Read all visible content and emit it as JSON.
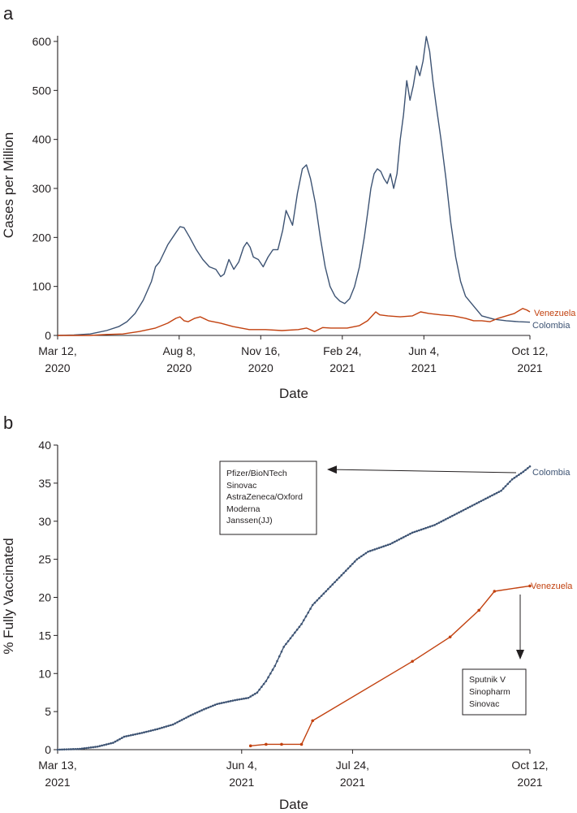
{
  "colors": {
    "colombia": "#3d5373",
    "venezuela": "#c2410f",
    "axis": "#231f20"
  },
  "chart_data": [
    {
      "panel": "a",
      "type": "line",
      "xlabel": "Date",
      "ylabel": "Cases per Million",
      "ylim": [
        0,
        600
      ],
      "yticks": [
        "0",
        "100",
        "200",
        "300",
        "400",
        "500",
        "600"
      ],
      "xrange_days": [
        0,
        579
      ],
      "xticks": [
        {
          "day": 0,
          "l1": "Mar 12,",
          "l2": "2020"
        },
        {
          "day": 149,
          "l1": "Aug 8,",
          "l2": "2020"
        },
        {
          "day": 249,
          "l1": "Nov 16,",
          "l2": "2020"
        },
        {
          "day": 349,
          "l1": "Feb 24,",
          "l2": "2021"
        },
        {
          "day": 449,
          "l1": "Jun 4,",
          "l2": "2021"
        },
        {
          "day": 579,
          "l1": "Oct 12,",
          "l2": "2021"
        }
      ],
      "series": [
        {
          "name": "Colombia",
          "color_key": "colombia",
          "points": [
            [
              0,
              0
            ],
            [
              20,
              1
            ],
            [
              40,
              3
            ],
            [
              60,
              10
            ],
            [
              75,
              18
            ],
            [
              85,
              28
            ],
            [
              95,
              45
            ],
            [
              105,
              72
            ],
            [
              115,
              110
            ],
            [
              120,
              140
            ],
            [
              125,
              150
            ],
            [
              135,
              185
            ],
            [
              145,
              210
            ],
            [
              150,
              222
            ],
            [
              155,
              220
            ],
            [
              162,
              200
            ],
            [
              170,
              175
            ],
            [
              178,
              155
            ],
            [
              186,
              140
            ],
            [
              194,
              135
            ],
            [
              200,
              120
            ],
            [
              204,
              125
            ],
            [
              210,
              155
            ],
            [
              216,
              135
            ],
            [
              222,
              150
            ],
            [
              228,
              180
            ],
            [
              232,
              190
            ],
            [
              236,
              180
            ],
            [
              240,
              160
            ],
            [
              246,
              155
            ],
            [
              252,
              140
            ],
            [
              258,
              160
            ],
            [
              264,
              175
            ],
            [
              270,
              175
            ],
            [
              276,
              215
            ],
            [
              280,
              255
            ],
            [
              284,
              240
            ],
            [
              288,
              225
            ],
            [
              294,
              290
            ],
            [
              300,
              340
            ],
            [
              305,
              348
            ],
            [
              310,
              320
            ],
            [
              316,
              270
            ],
            [
              322,
              200
            ],
            [
              328,
              140
            ],
            [
              334,
              100
            ],
            [
              340,
              80
            ],
            [
              346,
              70
            ],
            [
              352,
              65
            ],
            [
              358,
              75
            ],
            [
              364,
              100
            ],
            [
              370,
              140
            ],
            [
              376,
              200
            ],
            [
              380,
              250
            ],
            [
              384,
              300
            ],
            [
              388,
              330
            ],
            [
              392,
              340
            ],
            [
              396,
              335
            ],
            [
              400,
              320
            ],
            [
              404,
              310
            ],
            [
              408,
              330
            ],
            [
              412,
              300
            ],
            [
              416,
              330
            ],
            [
              420,
              400
            ],
            [
              424,
              450
            ],
            [
              428,
              520
            ],
            [
              432,
              480
            ],
            [
              436,
              510
            ],
            [
              440,
              550
            ],
            [
              444,
              530
            ],
            [
              448,
              560
            ],
            [
              452,
              610
            ],
            [
              456,
              580
            ],
            [
              460,
              520
            ],
            [
              464,
              470
            ],
            [
              470,
              400
            ],
            [
              476,
              320
            ],
            [
              482,
              230
            ],
            [
              488,
              160
            ],
            [
              494,
              110
            ],
            [
              500,
              80
            ],
            [
              510,
              60
            ],
            [
              520,
              40
            ],
            [
              535,
              33
            ],
            [
              550,
              30
            ],
            [
              565,
              28
            ],
            [
              579,
              27
            ]
          ]
        },
        {
          "name": "Venezuela",
          "color_key": "venezuela",
          "points": [
            [
              0,
              0
            ],
            [
              40,
              0
            ],
            [
              60,
              2
            ],
            [
              80,
              3
            ],
            [
              100,
              8
            ],
            [
              120,
              15
            ],
            [
              135,
              25
            ],
            [
              145,
              35
            ],
            [
              150,
              38
            ],
            [
              155,
              30
            ],
            [
              160,
              28
            ],
            [
              168,
              35
            ],
            [
              175,
              38
            ],
            [
              185,
              30
            ],
            [
              200,
              25
            ],
            [
              215,
              18
            ],
            [
              235,
              12
            ],
            [
              255,
              12
            ],
            [
              275,
              10
            ],
            [
              295,
              12
            ],
            [
              305,
              15
            ],
            [
              315,
              8
            ],
            [
              325,
              16
            ],
            [
              335,
              15
            ],
            [
              355,
              15
            ],
            [
              370,
              20
            ],
            [
              380,
              30
            ],
            [
              390,
              48
            ],
            [
              395,
              42
            ],
            [
              405,
              40
            ],
            [
              420,
              38
            ],
            [
              435,
              40
            ],
            [
              445,
              48
            ],
            [
              455,
              45
            ],
            [
              470,
              42
            ],
            [
              485,
              40
            ],
            [
              500,
              35
            ],
            [
              510,
              30
            ],
            [
              520,
              30
            ],
            [
              530,
              28
            ],
            [
              540,
              35
            ],
            [
              550,
              40
            ],
            [
              560,
              45
            ],
            [
              570,
              55
            ],
            [
              575,
              52
            ],
            [
              579,
              48
            ]
          ]
        }
      ],
      "series_labels": {
        "colombia": "Colombia",
        "venezuela": "Venezuela"
      }
    },
    {
      "panel": "b",
      "type": "line",
      "xlabel": "Date",
      "ylabel": "% Fully Vaccinated",
      "ylim": [
        0,
        40
      ],
      "yticks": [
        "0",
        "5",
        "10",
        "15",
        "20",
        "25",
        "30",
        "35",
        "40"
      ],
      "xrange_days": [
        0,
        213
      ],
      "xticks": [
        {
          "day": 0,
          "l1": "Mar 13,",
          "l2": "2021"
        },
        {
          "day": 83,
          "l1": "Jun 4,",
          "l2": "2021"
        },
        {
          "day": 133,
          "l1": "Jul 24,",
          "l2": "2021"
        },
        {
          "day": 213,
          "l1": "Oct 12,",
          "l2": "2021"
        }
      ],
      "series": [
        {
          "name": "Colombia",
          "color_key": "colombia",
          "dense_markers": true,
          "points": [
            [
              0,
              0
            ],
            [
              10,
              0.1
            ],
            [
              18,
              0.4
            ],
            [
              25,
              0.9
            ],
            [
              30,
              1.7
            ],
            [
              38,
              2.2
            ],
            [
              45,
              2.7
            ],
            [
              52,
              3.3
            ],
            [
              60,
              4.5
            ],
            [
              66,
              5.3
            ],
            [
              72,
              6.0
            ],
            [
              80,
              6.5
            ],
            [
              86,
              6.8
            ],
            [
              90,
              7.5
            ],
            [
              94,
              9.0
            ],
            [
              98,
              11.0
            ],
            [
              102,
              13.5
            ],
            [
              106,
              15.0
            ],
            [
              110,
              16.5
            ],
            [
              115,
              19.0
            ],
            [
              120,
              20.5
            ],
            [
              125,
              22.0
            ],
            [
              130,
              23.5
            ],
            [
              135,
              25.0
            ],
            [
              140,
              26.0
            ],
            [
              150,
              27.0
            ],
            [
              160,
              28.5
            ],
            [
              170,
              29.5
            ],
            [
              180,
              31.0
            ],
            [
              190,
              32.5
            ],
            [
              200,
              34.0
            ],
            [
              205,
              35.5
            ],
            [
              210,
              36.5
            ],
            [
              213,
              37.2
            ]
          ]
        },
        {
          "name": "Venezuela",
          "color_key": "venezuela",
          "dense_markers": false,
          "points": [
            [
              87,
              0.5
            ],
            [
              94,
              0.7
            ],
            [
              101,
              0.7
            ],
            [
              110,
              0.7
            ],
            [
              115,
              3.8
            ],
            [
              160,
              11.6
            ],
            [
              177,
              14.8
            ],
            [
              190,
              18.3
            ],
            [
              197,
              20.8
            ],
            [
              213,
              21.5
            ]
          ]
        }
      ],
      "series_labels": {
        "colombia": "Colombia",
        "venezuela": "Venezuela"
      },
      "annotations": {
        "colombia_box": [
          "Pfizer/BioNTech",
          "Sinovac",
          "AstraZeneca/Oxford",
          "Moderna",
          "Janssen(JJ)"
        ],
        "venezuela_box": [
          "Sputnik V",
          "Sinopharm",
          "Sinovac"
        ]
      }
    }
  ]
}
